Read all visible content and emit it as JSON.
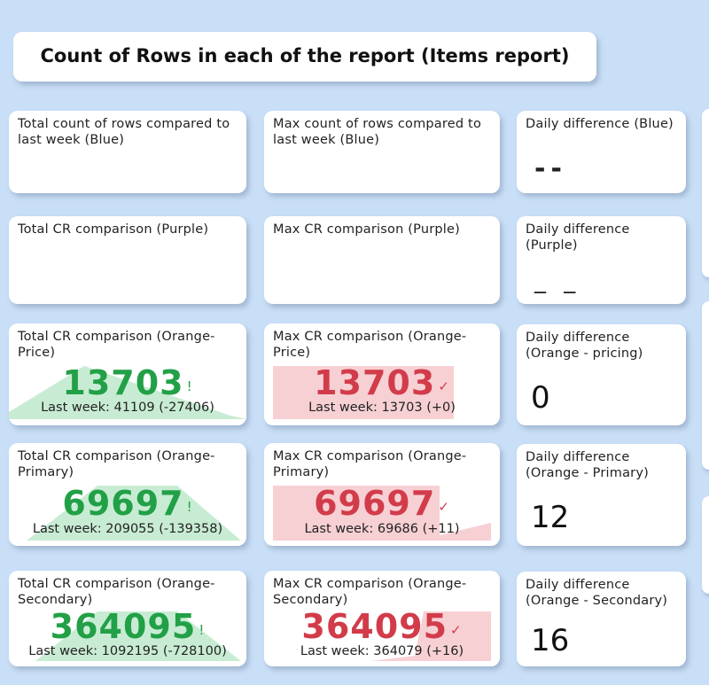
{
  "page_title": "Count of Rows in each of the report (Items report)",
  "row1": {
    "total_title": "Total count of rows compared to last week (Blue)",
    "max_title": "Max count of rows compared to last week (Blue)",
    "daily_title": "Daily difference (Blue)",
    "daily_value": "--"
  },
  "row2": {
    "total_title": "Total CR comparison (Purple)",
    "max_title": "Max CR comparison (Purple)",
    "daily_title": "Daily difference (Purple)",
    "daily_value": "_ _"
  },
  "row3": {
    "total_title": "Total CR comparison (Orange-Price)",
    "total_value": "13703",
    "total_mark": "!",
    "total_lastweek": "Last week: 41109 (-27406)",
    "max_title": "Max CR comparison (Orange-Price)",
    "max_value": "13703",
    "max_mark": "✓",
    "max_lastweek": "Last week: 13703 (+0)",
    "daily_title": "Daily difference (Orange - pricing)",
    "daily_value": "0"
  },
  "row4": {
    "total_title": "Total CR comparison (Orange-Primary)",
    "total_value": "69697",
    "total_mark": "!",
    "total_lastweek": "Last week: 209055 (-139358)",
    "max_title": "Max CR comparison (Orange-Primary)",
    "max_value": "69697",
    "max_mark": "✓",
    "max_lastweek": "Last week: 69686 (+11)",
    "daily_title": "Daily difference (Orange - Primary)",
    "daily_value": "12"
  },
  "row5": {
    "total_title": "Total CR comparison (Orange-Secondary)",
    "total_value": "364095",
    "total_mark": "!",
    "total_lastweek": "Last week: 1092195 (-728100)",
    "max_title": "Max CR comparison (Orange-Secondary)",
    "max_value": "364095",
    "max_mark": "✓",
    "max_lastweek": "Last week: 364079 (+16)",
    "daily_title": "Daily difference (Orange - Secondary)",
    "daily_value": "16"
  },
  "colors": {
    "background": "#c9dff7",
    "good": "#22a047",
    "good_fill": "#c8ecd3",
    "alert": "#d23c4a",
    "alert_fill": "#f7d0d4"
  }
}
